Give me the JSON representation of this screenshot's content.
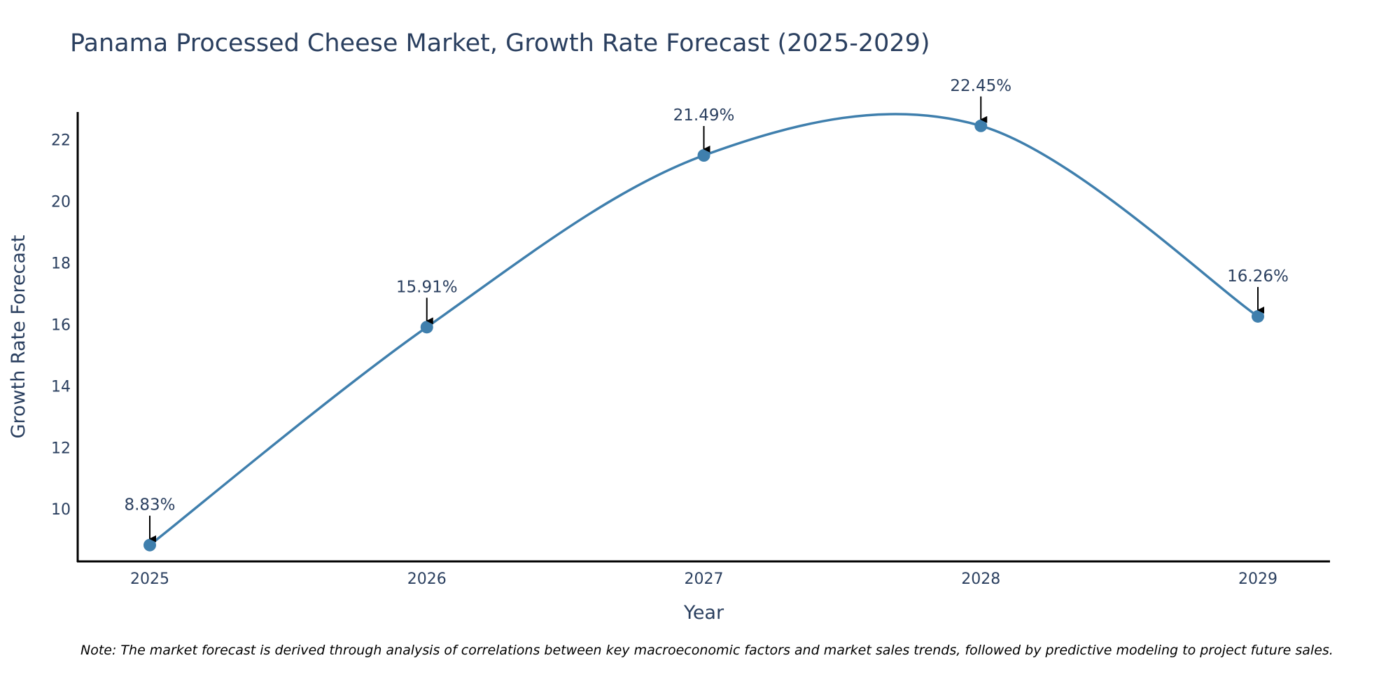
{
  "chart_data": {
    "type": "line",
    "title": "Panama Processed Cheese Market, Growth Rate Forecast (2025-2029)",
    "xlabel": "Year",
    "ylabel": "Growth Rate Forecast",
    "categories": [
      "2025",
      "2026",
      "2027",
      "2028",
      "2029"
    ],
    "series": [
      {
        "name": "Growth Rate Forecast",
        "values": [
          8.83,
          15.91,
          21.49,
          22.45,
          16.26
        ],
        "point_labels": [
          "8.83%",
          "15.91%",
          "21.49%",
          "22.45%",
          "16.26%"
        ],
        "color": "#3f7fad"
      }
    ],
    "ylim": [
      8.3,
      22.9
    ],
    "yticks": [
      10,
      12,
      14,
      16,
      18,
      20,
      22
    ],
    "grid": false,
    "line_shape": "spline"
  },
  "note": "Note: The market forecast is derived through analysis of correlations between key macroeconomic factors and market sales trends, followed by predictive modeling to project future sales.",
  "colors": {
    "title": "#2a3f5f",
    "axis_text": "#2a3f5f",
    "axis_line": "#000000",
    "arrow": "#000000"
  }
}
